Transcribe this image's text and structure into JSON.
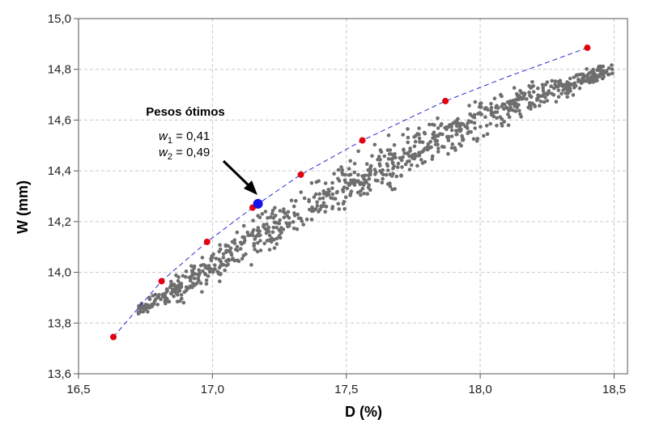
{
  "chart_data": {
    "type": "scatter",
    "title": "",
    "xlabel": "D (%)",
    "ylabel": "W (mm)",
    "xlim": [
      16.5,
      18.55
    ],
    "ylim": [
      13.6,
      15.0
    ],
    "xticks": [
      "16,5",
      "17,0",
      "17,5",
      "18,0",
      "18,5"
    ],
    "xtick_values": [
      16.5,
      17.0,
      17.5,
      18.0,
      18.5
    ],
    "yticks": [
      "13,6",
      "13,8",
      "14,0",
      "14,2",
      "14,4",
      "14,6",
      "14,8",
      "15,0"
    ],
    "ytick_values": [
      13.6,
      13.8,
      14.0,
      14.2,
      14.4,
      14.6,
      14.8,
      15.0
    ],
    "grid": true,
    "colors": {
      "cloud": "#6e6e6e",
      "frontier_points": "#e3000f",
      "optimum": "#1414e6",
      "frontier_line": "#2a2ad0",
      "grid": "#c8c8c8"
    },
    "series": [
      {
        "role": "pareto-frontier-points",
        "points": [
          [
            16.63,
            13.745
          ],
          [
            16.81,
            13.965
          ],
          [
            16.98,
            14.12
          ],
          [
            17.15,
            14.255
          ],
          [
            17.33,
            14.385
          ],
          [
            17.56,
            14.52
          ],
          [
            17.87,
            14.675
          ],
          [
            18.4,
            14.885
          ]
        ]
      },
      {
        "role": "optimum-point",
        "points": [
          [
            17.17,
            14.27
          ]
        ]
      },
      {
        "role": "pareto-frontier-curve",
        "points": [
          [
            16.63,
            13.745
          ],
          [
            16.81,
            13.965
          ],
          [
            16.98,
            14.12
          ],
          [
            17.15,
            14.255
          ],
          [
            17.33,
            14.385
          ],
          [
            17.56,
            14.52
          ],
          [
            17.87,
            14.675
          ],
          [
            18.1,
            14.77
          ],
          [
            18.4,
            14.885
          ]
        ]
      },
      {
        "role": "simulated-cloud",
        "band": [
          [
            16.7,
            13.82,
            13.86
          ],
          [
            16.9,
            13.86,
            14.04
          ],
          [
            17.1,
            13.98,
            14.2
          ],
          [
            17.3,
            14.1,
            14.34
          ],
          [
            17.5,
            14.22,
            14.47
          ],
          [
            17.7,
            14.32,
            14.58
          ],
          [
            17.9,
            14.44,
            14.67
          ],
          [
            18.1,
            14.56,
            14.74
          ],
          [
            18.3,
            14.66,
            14.8
          ],
          [
            18.5,
            14.76,
            14.84
          ]
        ]
      }
    ],
    "annotation": {
      "title": "Pesos ótimos",
      "w1": {
        "symbol": "w",
        "sub": "1",
        "text": " = 0,41"
      },
      "w2": {
        "symbol": "w",
        "sub": "2",
        "text": " = 0,49"
      }
    }
  }
}
